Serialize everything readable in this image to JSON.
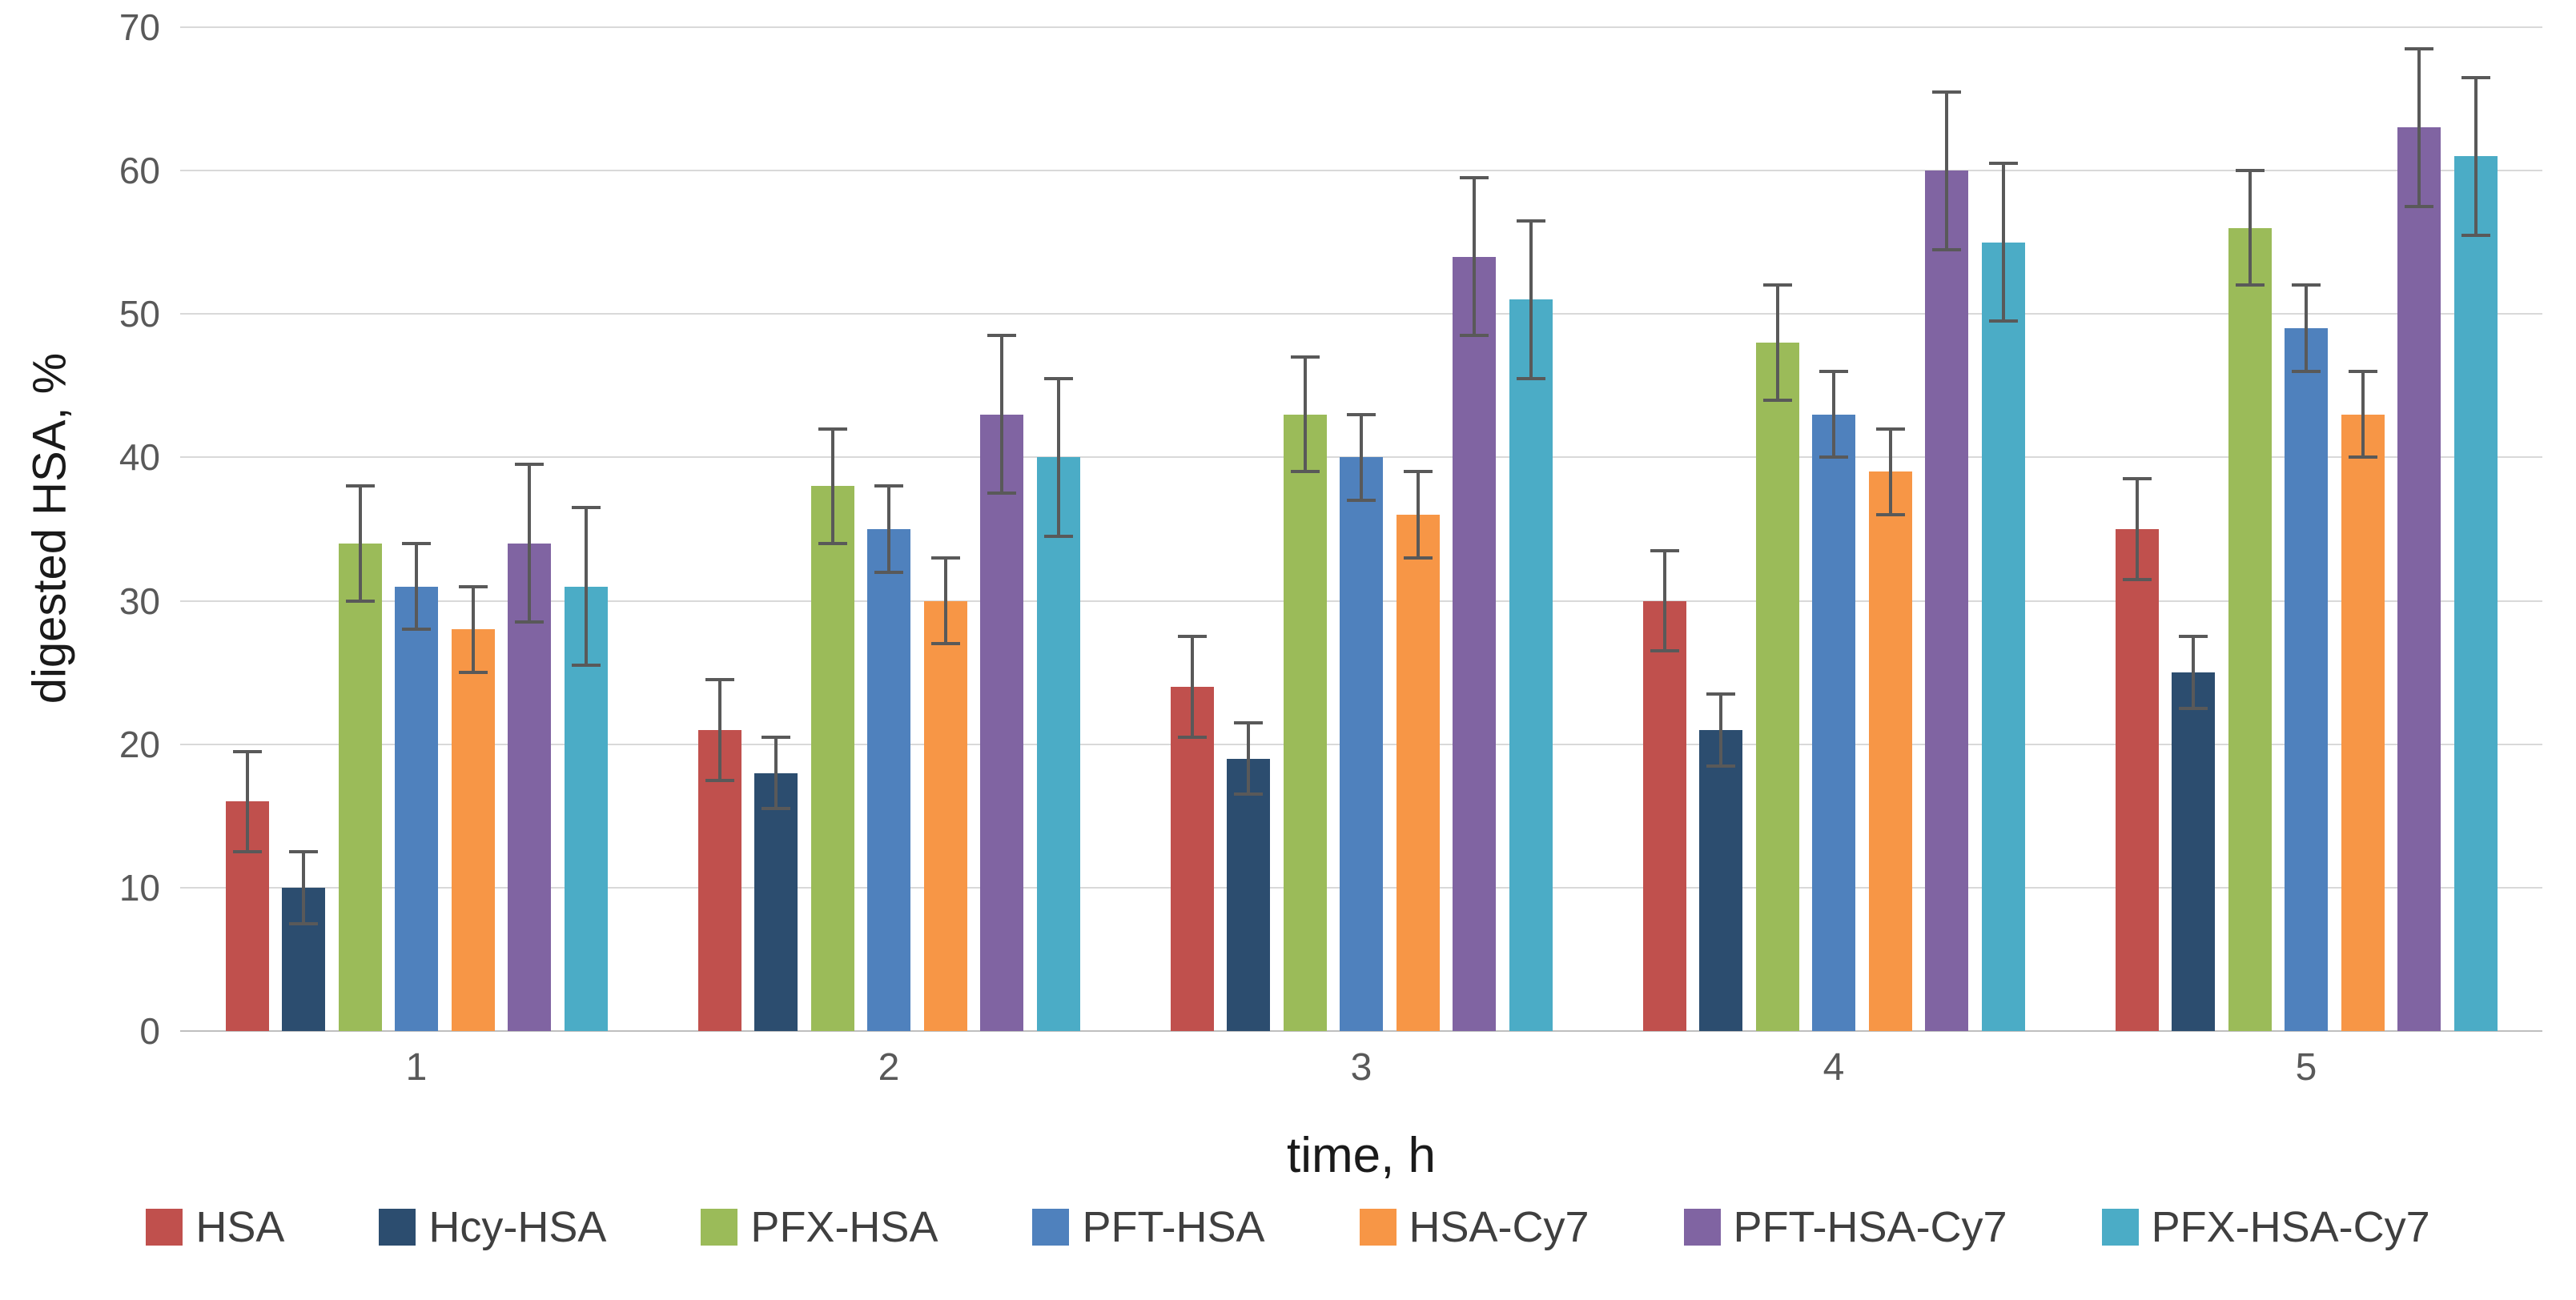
{
  "chart_data": {
    "type": "bar",
    "title": "",
    "xlabel": "time, h",
    "ylabel": "digested HSA, %",
    "categories": [
      "1",
      "2",
      "3",
      "4",
      "5"
    ],
    "y_ticks": [
      0,
      10,
      20,
      30,
      40,
      50,
      60,
      70
    ],
    "ylim": [
      0,
      70
    ],
    "grid": true,
    "legend_position": "bottom",
    "error_bar_color": "#595959",
    "gridline_color": "#D9D9D9",
    "series": [
      {
        "name": "HSA",
        "color": "#C0504D",
        "values": [
          16,
          21,
          24,
          30,
          35
        ],
        "errors": [
          3.5,
          3.5,
          3.5,
          3.5,
          3.5
        ]
      },
      {
        "name": "Hcy-HSA",
        "color": "#2C4D6F",
        "values": [
          10,
          18,
          19,
          21,
          25
        ],
        "errors": [
          2.5,
          2.5,
          2.5,
          2.5,
          2.5
        ]
      },
      {
        "name": "PFX-HSA",
        "color": "#9BBB59",
        "values": [
          34,
          38,
          43,
          48,
          56
        ],
        "errors": [
          4,
          4,
          4,
          4,
          4
        ]
      },
      {
        "name": "PFT-HSA",
        "color": "#4F81BD",
        "values": [
          31,
          35,
          40,
          43,
          49
        ],
        "errors": [
          3,
          3,
          3,
          3,
          3
        ]
      },
      {
        "name": "HSA-Cy7",
        "color": "#F79646",
        "values": [
          28,
          30,
          36,
          39,
          43
        ],
        "errors": [
          3,
          3,
          3,
          3,
          3
        ]
      },
      {
        "name": "PFT-HSA-Cy7",
        "color": "#8064A2",
        "values": [
          34,
          43,
          54,
          60,
          63
        ],
        "errors": [
          5.5,
          5.5,
          5.5,
          5.5,
          5.5
        ]
      },
      {
        "name": "PFX-HSA-Cy7",
        "color": "#4BACC6",
        "values": [
          31,
          40,
          51,
          55,
          61
        ],
        "errors": [
          5.5,
          5.5,
          5.5,
          5.5,
          5.5
        ]
      }
    ]
  }
}
